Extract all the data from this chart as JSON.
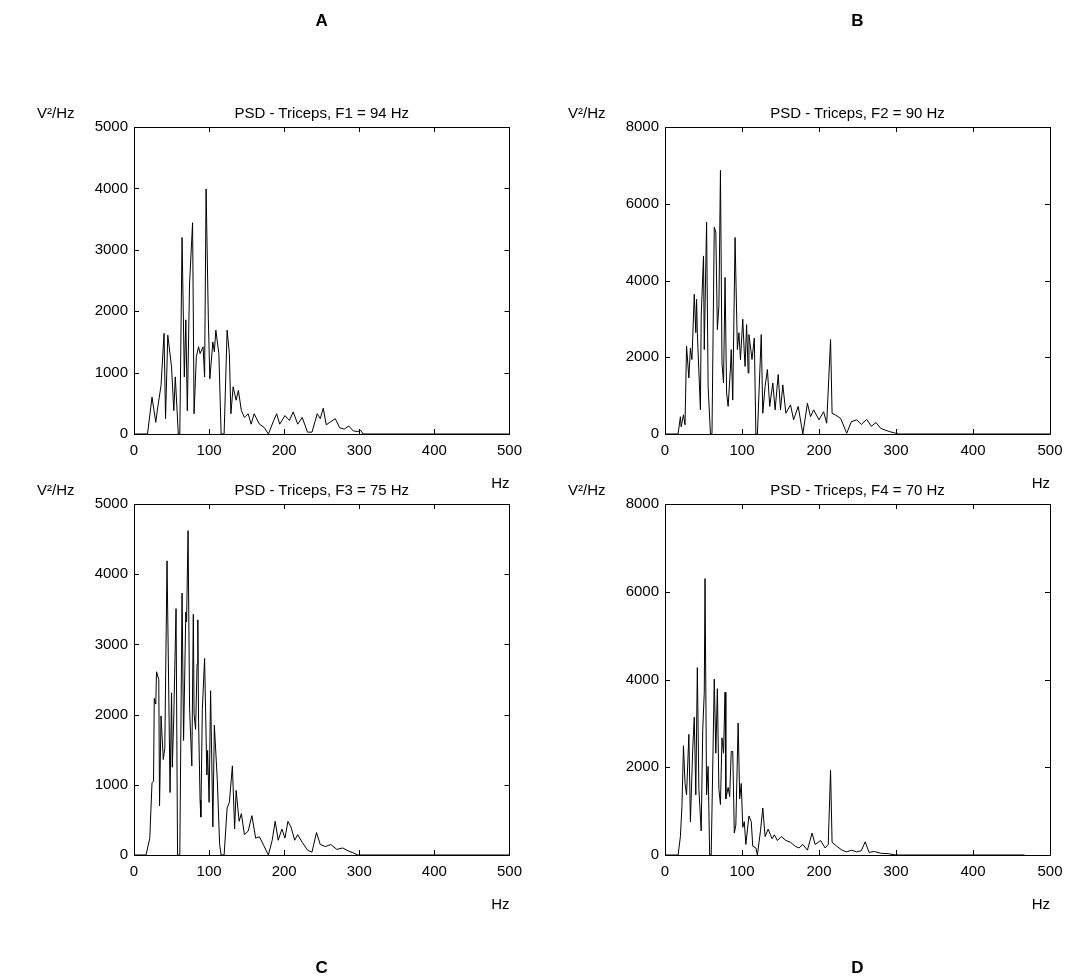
{
  "chart_data": [
    {
      "type": "line",
      "title": "PSD - Triceps, F1 = 94 Hz",
      "xlabel": "Hz",
      "ylabel": "V²/Hz",
      "annotations": [
        "A"
      ],
      "color": "#000000",
      "xlim": [
        0,
        500
      ],
      "ylim": [
        0,
        5000
      ],
      "xticks": [
        0,
        100,
        200,
        300,
        400,
        500
      ],
      "yticks": [
        0,
        1000,
        2000,
        3000,
        4000,
        5000
      ],
      "x": [
        0,
        18,
        24,
        29,
        31,
        36,
        40,
        42,
        45,
        50,
        53,
        55,
        59,
        61,
        64,
        67,
        69,
        71,
        74,
        78,
        80,
        83,
        86,
        88,
        92,
        94,
        96,
        99,
        101,
        105,
        107,
        109,
        113,
        116,
        120,
        124,
        127,
        129,
        132,
        136,
        139,
        143,
        147,
        152,
        156,
        160,
        167,
        173,
        179,
        186,
        190,
        194,
        201,
        207,
        212,
        218,
        224,
        231,
        237,
        244,
        248,
        252,
        256,
        262,
        268,
        274,
        280,
        286,
        292,
        298,
        302,
        305,
        500
      ],
      "values": [
        0,
        0,
        600,
        190,
        380,
        790,
        1640,
        250,
        1610,
        1090,
        380,
        930,
        0,
        0,
        3200,
        930,
        1860,
        380,
        2460,
        3440,
        330,
        1260,
        1420,
        1310,
        1420,
        930,
        3990,
        1860,
        900,
        1500,
        1340,
        1690,
        1310,
        0,
        0,
        1690,
        1310,
        330,
        770,
        550,
        710,
        380,
        270,
        330,
        160,
        330,
        160,
        110,
        0,
        220,
        330,
        160,
        300,
        220,
        360,
        160,
        270,
        30,
        30,
        330,
        250,
        420,
        150,
        200,
        250,
        100,
        80,
        130,
        50,
        40,
        60,
        0,
        0
      ]
    },
    {
      "type": "line",
      "title": "PSD - Triceps, F2 = 90 Hz",
      "xlabel": "Hz",
      "ylabel": "V²/Hz",
      "annotations": [
        "B"
      ],
      "color": "#000000",
      "xlim": [
        0,
        500
      ],
      "ylim": [
        0,
        8000
      ],
      "xticks": [
        0,
        100,
        200,
        300,
        400,
        500
      ],
      "yticks": [
        0,
        2000,
        4000,
        6000,
        8000
      ],
      "x": [
        0,
        17,
        20,
        21,
        24,
        26,
        28,
        31,
        33,
        35,
        38,
        40,
        41,
        42,
        46,
        47,
        50,
        51,
        54,
        56,
        59,
        61,
        64,
        66,
        68,
        70,
        72,
        74,
        76,
        78,
        80,
        82,
        85,
        86,
        88,
        91,
        94,
        96,
        98,
        101,
        103,
        104,
        106,
        108,
        109,
        113,
        116,
        118,
        120,
        125,
        127,
        130,
        133,
        136,
        140,
        143,
        147,
        150,
        153,
        157,
        163,
        167,
        173,
        179,
        185,
        189,
        193,
        200,
        206,
        210,
        215,
        217,
        221,
        228,
        236,
        242,
        249,
        255,
        262,
        268,
        274,
        280,
        286,
        292,
        298,
        303,
        500
      ],
      "values": [
        0,
        0,
        450,
        190,
        500,
        240,
        2290,
        1460,
        2240,
        1940,
        3640,
        2640,
        3510,
        2640,
        630,
        3070,
        4640,
        2200,
        5520,
        1240,
        0,
        0,
        5390,
        5260,
        2720,
        3340,
        6870,
        1850,
        1330,
        4080,
        1070,
        720,
        1720,
        2200,
        890,
        5120,
        2200,
        2640,
        1940,
        2990,
        2110,
        1760,
        2850,
        1590,
        2590,
        1940,
        2500,
        0,
        0,
        2590,
        540,
        1240,
        1680,
        720,
        1330,
        630,
        1550,
        630,
        1280,
        540,
        760,
        370,
        720,
        0,
        800,
        450,
        630,
        370,
        580,
        280,
        2460,
        540,
        500,
        410,
        20,
        320,
        370,
        250,
        380,
        200,
        300,
        150,
        100,
        60,
        30,
        0,
        0
      ]
    },
    {
      "type": "line",
      "title": "PSD - Triceps, F3 = 75 Hz",
      "xlabel": "Hz",
      "ylabel": "V²/Hz",
      "annotations": [
        "C"
      ],
      "color": "#000000",
      "xlim": [
        0,
        500
      ],
      "ylim": [
        0,
        5000
      ],
      "xticks": [
        0,
        100,
        200,
        300,
        400,
        500
      ],
      "yticks": [
        0,
        1000,
        2000,
        3000,
        4000,
        5000
      ],
      "x": [
        0,
        16,
        21,
        24,
        26,
        27,
        29,
        30,
        33,
        34,
        36,
        39,
        41,
        44,
        48,
        50,
        51,
        53,
        56,
        58,
        61,
        64,
        66,
        69,
        70,
        72,
        74,
        77,
        79,
        80,
        82,
        84,
        85,
        86,
        88,
        89,
        91,
        94,
        97,
        98,
        100,
        102,
        105,
        107,
        111,
        114,
        116,
        120,
        124,
        127,
        131,
        134,
        136,
        140,
        143,
        147,
        152,
        157,
        162,
        167,
        173,
        179,
        184,
        188,
        192,
        197,
        201,
        205,
        209,
        214,
        218,
        224,
        231,
        237,
        243,
        248,
        255,
        262,
        270,
        278,
        285,
        292,
        298,
        500
      ],
      "values": [
        0,
        0,
        240,
        1030,
        1050,
        2230,
        2150,
        2610,
        2500,
        700,
        1980,
        1360,
        1520,
        4190,
        890,
        2310,
        1250,
        1980,
        3510,
        0,
        0,
        3730,
        1630,
        3460,
        3320,
        4620,
        2090,
        1270,
        3430,
        2010,
        1790,
        2720,
        3350,
        1900,
        780,
        540,
        2070,
        2800,
        1140,
        1490,
        750,
        2340,
        400,
        1850,
        1050,
        150,
        0,
        0,
        670,
        750,
        1270,
        370,
        920,
        480,
        590,
        290,
        340,
        560,
        240,
        260,
        130,
        0,
        210,
        480,
        210,
        370,
        240,
        480,
        400,
        210,
        290,
        180,
        70,
        40,
        320,
        150,
        120,
        150,
        80,
        100,
        60,
        30,
        0,
        0
      ]
    },
    {
      "type": "line",
      "title": "PSD - Triceps, F4 = 70 Hz",
      "xlabel": "Hz",
      "ylabel": "V²/Hz",
      "annotations": [
        "D"
      ],
      "color": "#000000",
      "xlim": [
        0,
        500
      ],
      "ylim": [
        0,
        8000
      ],
      "xticks": [
        0,
        100,
        200,
        300,
        400,
        500
      ],
      "yticks": [
        0,
        2000,
        4000,
        6000,
        8000
      ],
      "x": [
        0,
        17,
        20,
        22,
        24,
        26,
        28,
        31,
        33,
        36,
        38,
        40,
        42,
        44,
        47,
        49,
        51,
        52,
        54,
        56,
        58,
        60,
        64,
        66,
        68,
        70,
        72,
        74,
        76,
        78,
        79,
        82,
        84,
        86,
        88,
        90,
        92,
        95,
        97,
        99,
        101,
        103,
        105,
        109,
        112,
        114,
        118,
        120,
        124,
        127,
        130,
        134,
        139,
        142,
        146,
        151,
        157,
        163,
        169,
        174,
        179,
        185,
        191,
        195,
        202,
        208,
        212,
        215,
        217,
        223,
        230,
        236,
        242,
        249,
        255,
        260,
        265,
        272,
        280,
        290,
        300,
        467
      ],
      "values": [
        0,
        0,
        420,
        1110,
        2490,
        1630,
        1370,
        2750,
        760,
        2410,
        3140,
        1370,
        4270,
        1500,
        550,
        2840,
        3710,
        6300,
        1370,
        2020,
        0,
        0,
        4010,
        2320,
        3790,
        1500,
        1150,
        2670,
        2320,
        3710,
        1280,
        1540,
        1330,
        2360,
        2360,
        500,
        680,
        3010,
        1280,
        1630,
        630,
        760,
        240,
        890,
        760,
        200,
        160,
        0,
        550,
        1070,
        420,
        590,
        370,
        460,
        330,
        420,
        330,
        290,
        200,
        160,
        240,
        110,
        500,
        240,
        330,
        160,
        240,
        1930,
        290,
        200,
        110,
        70,
        110,
        70,
        100,
        300,
        60,
        80,
        40,
        30,
        0,
        0
      ]
    }
  ]
}
